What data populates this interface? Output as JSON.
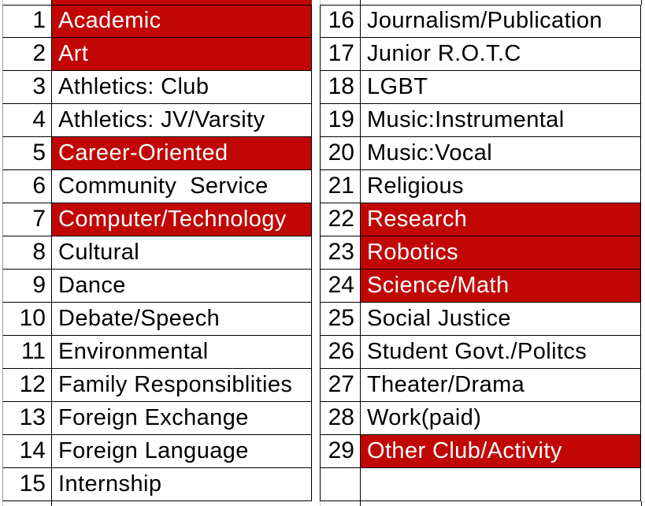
{
  "table": {
    "colors": {
      "highlight_bg": "#c10606",
      "highlight_text": "#ffffff",
      "text": "#000000",
      "border": "#000000",
      "gridline": "#c9c9c9"
    },
    "rows": [
      {
        "left_num": "1",
        "left_label": "Academic",
        "left_highlight": true,
        "right_num": "16",
        "right_label": "Journalism/Publication",
        "right_highlight": false
      },
      {
        "left_num": "2",
        "left_label": "Art",
        "left_highlight": true,
        "right_num": "17",
        "right_label": "Junior R.O.T.C",
        "right_highlight": false
      },
      {
        "left_num": "3",
        "left_label": "Athletics: Club",
        "left_highlight": false,
        "right_num": "18",
        "right_label": "LGBT",
        "right_highlight": false
      },
      {
        "left_num": "4",
        "left_label": "Athletics: JV/Varsity",
        "left_highlight": false,
        "right_num": "19",
        "right_label": "Music:Instrumental",
        "right_highlight": false
      },
      {
        "left_num": "5",
        "left_label": "Career-Oriented",
        "left_highlight": true,
        "right_num": "20",
        "right_label": "Music:Vocal",
        "right_highlight": false
      },
      {
        "left_num": "6",
        "left_label": "Community  Service",
        "left_highlight": false,
        "right_num": "21",
        "right_label": "Religious",
        "right_highlight": false
      },
      {
        "left_num": "7",
        "left_label": "Computer/Technology",
        "left_highlight": true,
        "right_num": "22",
        "right_label": "Research",
        "right_highlight": true
      },
      {
        "left_num": "8",
        "left_label": "Cultural",
        "left_highlight": false,
        "right_num": "23",
        "right_label": "Robotics",
        "right_highlight": true
      },
      {
        "left_num": "9",
        "left_label": "Dance",
        "left_highlight": false,
        "right_num": "24",
        "right_label": "Science/Math",
        "right_highlight": true
      },
      {
        "left_num": "10",
        "left_label": "Debate/Speech",
        "left_highlight": false,
        "right_num": "25",
        "right_label": "Social Justice",
        "right_highlight": false
      },
      {
        "left_num": "11",
        "left_label": "Environmental",
        "left_highlight": false,
        "right_num": "26",
        "right_label": "Student Govt./Politcs",
        "right_highlight": false
      },
      {
        "left_num": "12",
        "left_label": "Family Responsiblities",
        "left_highlight": false,
        "right_num": "27",
        "right_label": "Theater/Drama",
        "right_highlight": false
      },
      {
        "left_num": "13",
        "left_label": "Foreign Exchange",
        "left_highlight": false,
        "right_num": "28",
        "right_label": "Work(paid)",
        "right_highlight": false
      },
      {
        "left_num": "14",
        "left_label": "Foreign Language",
        "left_highlight": false,
        "right_num": "29",
        "right_label": "Other Club/Activity",
        "right_highlight": true
      },
      {
        "left_num": "15",
        "left_label": "Internship",
        "left_highlight": false,
        "right_num": "",
        "right_label": "",
        "right_highlight": false
      }
    ]
  }
}
